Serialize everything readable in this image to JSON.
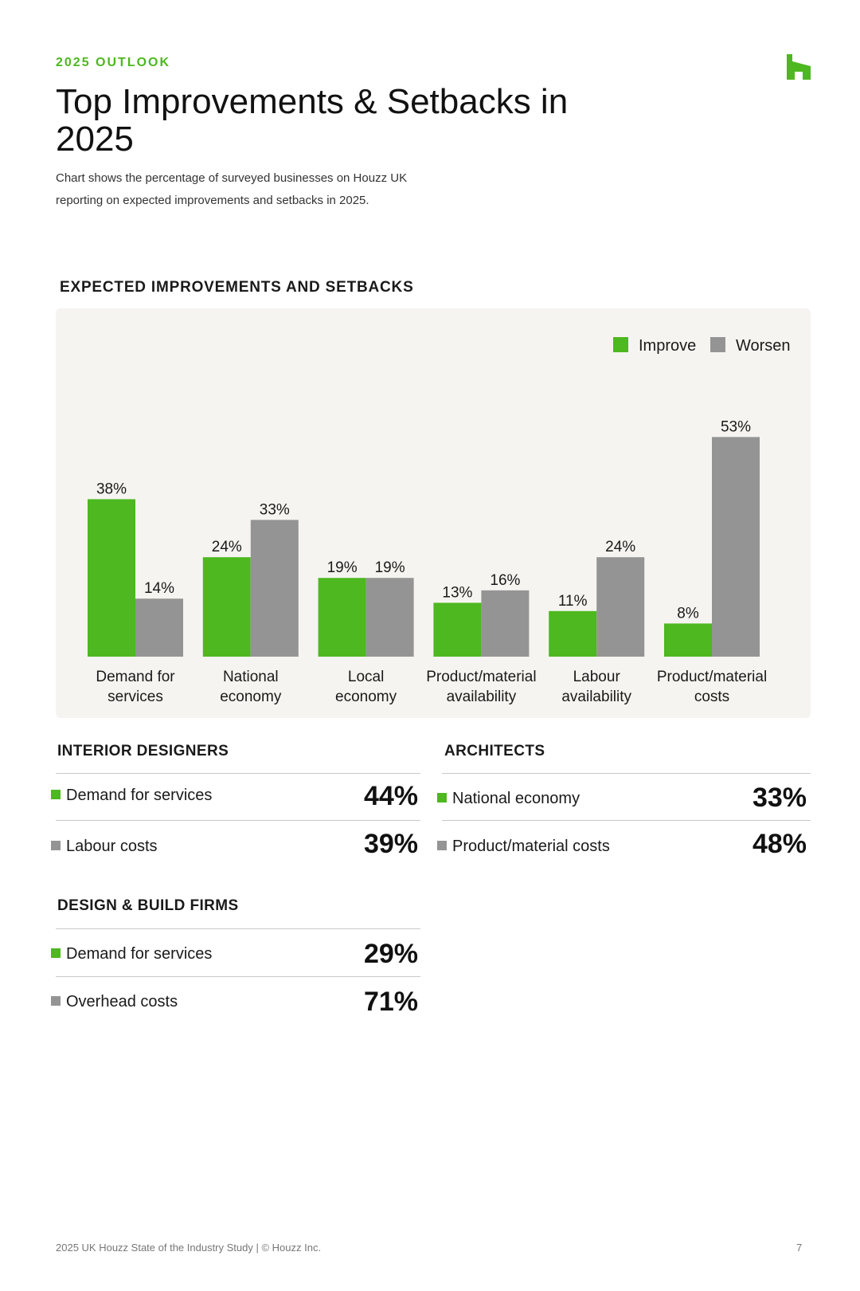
{
  "header": {
    "eyebrow": "2025 OUTLOOK",
    "title": "Top Improvements & Setbacks in 2025",
    "subtitle": "Chart shows the percentage of surveyed businesses on Houzz UK reporting on expected improvements and setbacks in 2025.",
    "logo_icon": "houzz-logo-icon"
  },
  "colors": {
    "improve": "#4db81f",
    "worsen": "#949494",
    "accent": "#4db81f"
  },
  "chart_data": {
    "type": "bar",
    "title": "EXPECTED IMPROVEMENTS AND SETBACKS",
    "categories": [
      [
        "Demand for",
        "services"
      ],
      [
        "National",
        "economy"
      ],
      [
        "Local",
        "economy"
      ],
      [
        "Product/material",
        "availability"
      ],
      [
        "Labour",
        "availability"
      ],
      [
        "Product/material",
        "costs"
      ]
    ],
    "series": [
      {
        "name": "Improve",
        "values": [
          38,
          24,
          19,
          13,
          11,
          8
        ]
      },
      {
        "name": "Worsen",
        "values": [
          14,
          33,
          19,
          16,
          24,
          53
        ]
      }
    ],
    "value_suffix": "%",
    "ylim": [
      0,
      60
    ],
    "grid": false,
    "legend": "top-right"
  },
  "sections": {
    "interior": {
      "heading": "INTERIOR DESIGNERS",
      "rows": [
        {
          "label": "Demand for services",
          "value": "44%"
        },
        {
          "label": "Labour costs",
          "value": "39%"
        }
      ]
    },
    "architects": {
      "heading": "ARCHITECTS",
      "rows": [
        {
          "label": "National economy",
          "value": "33%"
        },
        {
          "label": "Product/material costs",
          "value": "48%"
        }
      ]
    },
    "design_build": {
      "heading": "DESIGN & BUILD FIRMS",
      "rows": [
        {
          "label": "Demand for services",
          "value": "29%"
        },
        {
          "label": "Overhead costs",
          "value": "71%"
        }
      ]
    }
  },
  "footer": {
    "text": "2025 UK Houzz State of the Industry Study | © Houzz Inc.",
    "page": "7"
  }
}
